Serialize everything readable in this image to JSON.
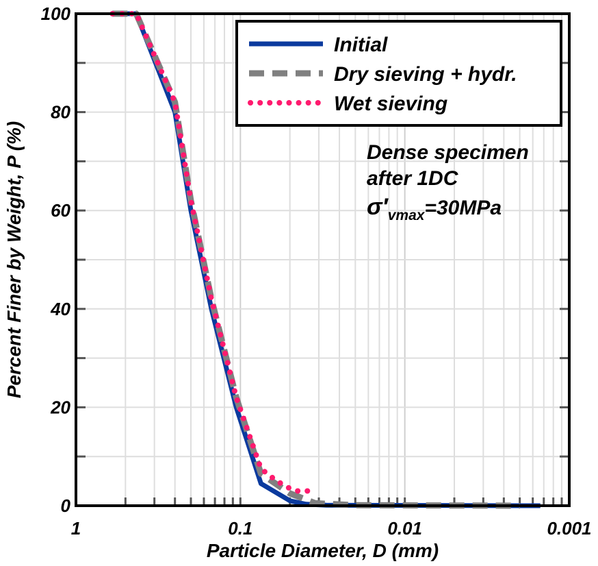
{
  "chart_data": {
    "type": "line",
    "title": "",
    "xlabel": "Particle Diameter, D (mm)",
    "ylabel": "Percent Finer by Weight, P (%)",
    "x_scale": "log",
    "x_reversed": true,
    "xlim": [
      1,
      0.001
    ],
    "ylim": [
      0,
      100
    ],
    "x_ticks": [
      {
        "value": 1,
        "label": "1"
      },
      {
        "value": 0.1,
        "label": "0.1"
      },
      {
        "value": 0.01,
        "label": "0.01"
      },
      {
        "value": 0.001,
        "label": "0.001"
      }
    ],
    "y_ticks": [
      {
        "value": 0,
        "label": "0"
      },
      {
        "value": 20,
        "label": "20"
      },
      {
        "value": 40,
        "label": "40"
      },
      {
        "value": 60,
        "label": "60"
      },
      {
        "value": 80,
        "label": "80"
      },
      {
        "value": 100,
        "label": "100"
      }
    ],
    "grid": true,
    "legend_position": "top-right",
    "series": [
      {
        "name": "Initial",
        "color": "#0b3a9e",
        "style": "solid",
        "points": [
          {
            "x": 0.6,
            "y": 100
          },
          {
            "x": 0.43,
            "y": 100
          },
          {
            "x": 0.25,
            "y": 80
          },
          {
            "x": 0.2,
            "y": 60
          },
          {
            "x": 0.15,
            "y": 40
          },
          {
            "x": 0.106,
            "y": 20
          },
          {
            "x": 0.075,
            "y": 4.5
          },
          {
            "x": 0.05,
            "y": 1
          },
          {
            "x": 0.04,
            "y": 0.3
          },
          {
            "x": 0.03,
            "y": 0.1
          },
          {
            "x": 0.0015,
            "y": 0
          }
        ]
      },
      {
        "name": "Dry sieving + hydr.",
        "color": "#808080",
        "style": "dashed",
        "points": [
          {
            "x": 0.6,
            "y": 100
          },
          {
            "x": 0.43,
            "y": 100
          },
          {
            "x": 0.25,
            "y": 82
          },
          {
            "x": 0.2,
            "y": 62
          },
          {
            "x": 0.15,
            "y": 42
          },
          {
            "x": 0.106,
            "y": 22
          },
          {
            "x": 0.075,
            "y": 6.5
          },
          {
            "x": 0.05,
            "y": 2.5
          },
          {
            "x": 0.035,
            "y": 0.5
          },
          {
            "x": 0.02,
            "y": 0.1
          },
          {
            "x": 0.002,
            "y": 0
          }
        ]
      },
      {
        "name": "Wet sieving",
        "color": "#ff1a6e",
        "style": "dotted",
        "points": [
          {
            "x": 0.6,
            "y": 100
          },
          {
            "x": 0.43,
            "y": 100
          },
          {
            "x": 0.25,
            "y": 82
          },
          {
            "x": 0.2,
            "y": 62
          },
          {
            "x": 0.15,
            "y": 42
          },
          {
            "x": 0.106,
            "y": 22
          },
          {
            "x": 0.075,
            "y": 7.5
          },
          {
            "x": 0.06,
            "y": 5
          },
          {
            "x": 0.05,
            "y": 3.5
          },
          {
            "x": 0.045,
            "y": 3
          },
          {
            "x": 0.035,
            "y": 3
          }
        ]
      }
    ],
    "annotations": [
      {
        "line1": "Dense specimen",
        "line2": "after 1DC",
        "line3_symbol": "σ′",
        "line3_sub": "vmax",
        "line3_rest": "=30MPa"
      }
    ]
  }
}
